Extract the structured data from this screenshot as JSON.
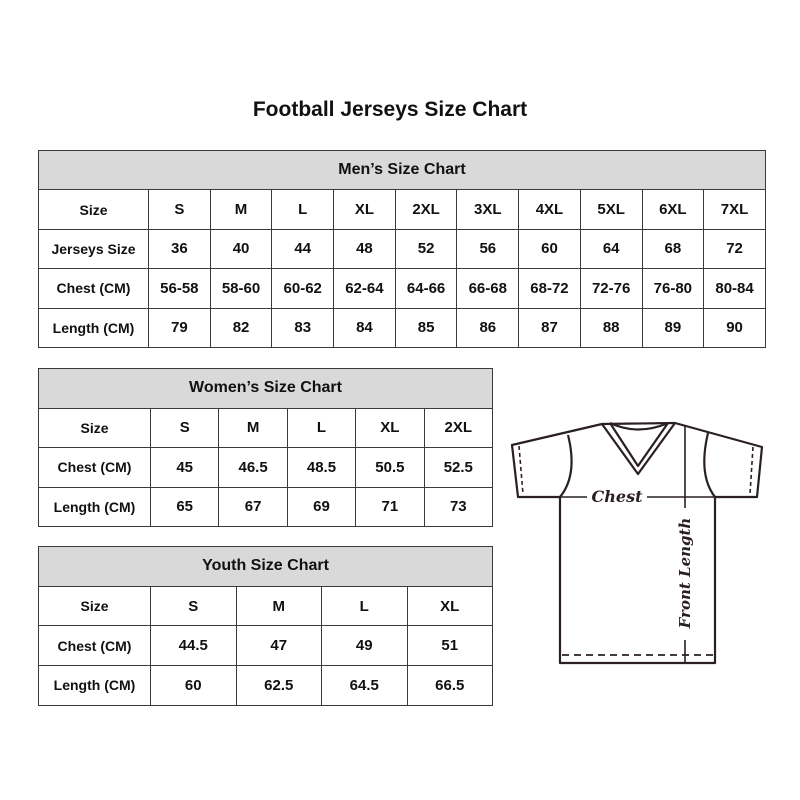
{
  "title": "Football Jerseys Size Chart",
  "men": {
    "caption": "Men’s Size Chart",
    "rows": [
      {
        "label": "Size",
        "values": [
          "S",
          "M",
          "L",
          "XL",
          "2XL",
          "3XL",
          "4XL",
          "5XL",
          "6XL",
          "7XL"
        ]
      },
      {
        "label": "Jerseys Size",
        "values": [
          "36",
          "40",
          "44",
          "48",
          "52",
          "56",
          "60",
          "64",
          "68",
          "72"
        ]
      },
      {
        "label": "Chest (CM)",
        "values": [
          "56-58",
          "58-60",
          "60-62",
          "62-64",
          "64-66",
          "66-68",
          "68-72",
          "72-76",
          "76-80",
          "80-84"
        ]
      },
      {
        "label": "Length (CM)",
        "values": [
          "79",
          "82",
          "83",
          "84",
          "85",
          "86",
          "87",
          "88",
          "89",
          "90"
        ]
      }
    ]
  },
  "women": {
    "caption": "Women’s Size Chart",
    "rows": [
      {
        "label": "Size",
        "values": [
          "S",
          "M",
          "L",
          "XL",
          "2XL"
        ]
      },
      {
        "label": "Chest (CM)",
        "values": [
          "45",
          "46.5",
          "48.5",
          "50.5",
          "52.5"
        ]
      },
      {
        "label": "Length (CM)",
        "values": [
          "65",
          "67",
          "69",
          "71",
          "73"
        ]
      }
    ]
  },
  "youth": {
    "caption": "Youth Size Chart",
    "rows": [
      {
        "label": "Size",
        "values": [
          "S",
          "M",
          "L",
          "XL"
        ]
      },
      {
        "label": "Chest (CM)",
        "values": [
          "44.5",
          "47",
          "49",
          "51"
        ]
      },
      {
        "label": "Length (CM)",
        "values": [
          "60",
          "62.5",
          "64.5",
          "66.5"
        ]
      }
    ]
  },
  "diagram": {
    "chest_label": "Chest",
    "length_label": "Front Length"
  },
  "colors": {
    "header_bg": "#d9d9d9",
    "border": "#3a3a3a"
  }
}
